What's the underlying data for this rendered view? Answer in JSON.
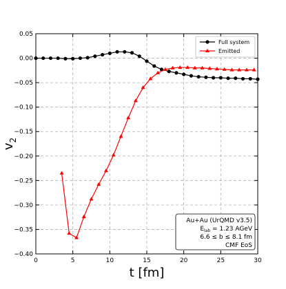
{
  "chart_data": {
    "type": "line",
    "title": "",
    "xlabel": "t [fm]",
    "ylabel_main": "v",
    "ylabel_sub": "2",
    "xlim": [
      0,
      30
    ],
    "ylim": [
      -0.4,
      0.05
    ],
    "xticks": [
      0,
      5,
      10,
      15,
      20,
      25,
      30
    ],
    "yticks": [
      0.05,
      0.0,
      -0.05,
      -0.1,
      -0.15,
      -0.2,
      -0.25,
      -0.3,
      -0.35,
      -0.4
    ],
    "xtick_labels": [
      "0",
      "5",
      "10",
      "15",
      "20",
      "25",
      "30"
    ],
    "ytick_labels": [
      "0.05",
      "0.00",
      "−0.05",
      "−0.10",
      "−0.15",
      "−0.20",
      "−0.25",
      "−0.30",
      "−0.35",
      "−0.40"
    ],
    "grid": true,
    "legend_position": "top-right",
    "series": [
      {
        "name": "Full system",
        "color": "#000000",
        "marker": "circle",
        "x": [
          0.0,
          1.0,
          2.0,
          3.0,
          4.0,
          5.0,
          6.0,
          7.0,
          8.0,
          9.0,
          10.0,
          11.0,
          12.0,
          13.0,
          14.0,
          15.0,
          16.0,
          17.0,
          18.0,
          19.0,
          20.0,
          21.0,
          22.0,
          23.0,
          24.0,
          25.0,
          26.0,
          27.0,
          28.0,
          29.0,
          30.0
        ],
        "y": [
          0.0,
          0.0,
          0.0,
          0.0,
          -0.001,
          -0.001,
          0.0,
          0.001,
          0.004,
          0.007,
          0.01,
          0.013,
          0.013,
          0.011,
          0.004,
          -0.006,
          -0.016,
          -0.023,
          -0.027,
          -0.03,
          -0.033,
          -0.036,
          -0.038,
          -0.039,
          -0.04,
          -0.04,
          -0.041,
          -0.041,
          -0.042,
          -0.042,
          -0.043
        ]
      },
      {
        "name": "Emitted",
        "color": "#ff0000",
        "marker": "triangle",
        "x": [
          3.5,
          4.5,
          5.5,
          6.5,
          7.5,
          8.5,
          9.5,
          10.5,
          11.5,
          12.5,
          13.5,
          14.5,
          15.5,
          16.5,
          17.5,
          18.5,
          19.5,
          20.5,
          21.5,
          22.5,
          23.5,
          24.5,
          25.5,
          26.5,
          27.5,
          28.5,
          29.5
        ],
        "y": [
          -0.235,
          -0.358,
          -0.367,
          -0.324,
          -0.288,
          -0.258,
          -0.23,
          -0.198,
          -0.16,
          -0.122,
          -0.087,
          -0.06,
          -0.042,
          -0.03,
          -0.023,
          -0.02,
          -0.019,
          -0.019,
          -0.02,
          -0.02,
          -0.021,
          -0.022,
          -0.023,
          -0.024,
          -0.024,
          -0.024,
          -0.024
        ]
      }
    ],
    "annotation": {
      "line1": "Au+Au (UrQMD v3.5)",
      "line2_prefix": "E",
      "line2_sub": "lab",
      "line2_suffix": " = 1.23 AGeV",
      "line3": "6.6 ≤ b ≤ 8.1 fm",
      "line4": "CMF EoS"
    }
  }
}
